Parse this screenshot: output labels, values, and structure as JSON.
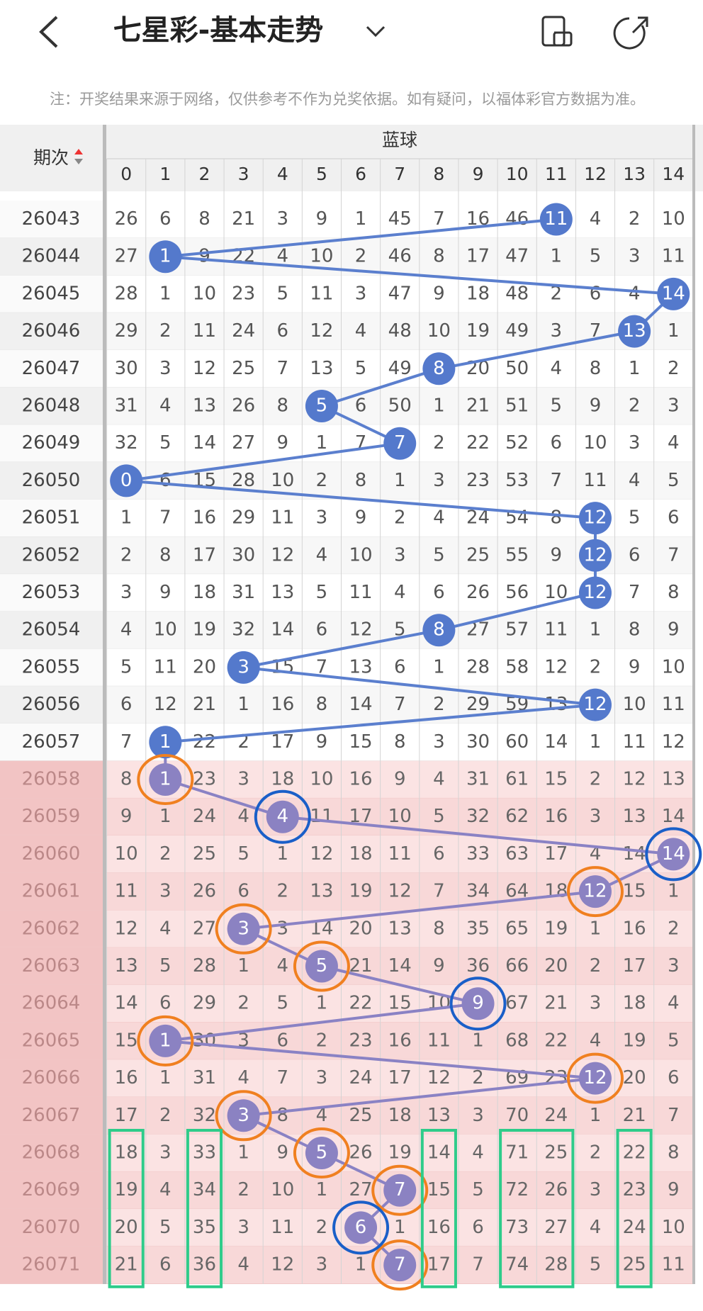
{
  "header": {
    "title": "七星彩-基本走势",
    "note": "注：开奖结果来源于网络，仅供参考不作为兑奖依据。如有疑问，以福体彩官方数据为准。"
  },
  "table": {
    "period_header": "期次",
    "group_header": "蓝球",
    "columns": [
      "0",
      "1",
      "2",
      "3",
      "4",
      "5",
      "6",
      "7",
      "8",
      "9",
      "10",
      "11",
      "12",
      "13",
      "14"
    ],
    "rows": [
      {
        "period": "26043",
        "cells": [
          26,
          6,
          8,
          21,
          3,
          9,
          1,
          45,
          7,
          16,
          46,
          11,
          4,
          2,
          10
        ],
        "hit": 11
      },
      {
        "period": "26044",
        "cells": [
          27,
          1,
          9,
          22,
          4,
          10,
          2,
          46,
          8,
          17,
          47,
          1,
          5,
          3,
          11
        ],
        "hit": 1
      },
      {
        "period": "26045",
        "cells": [
          28,
          1,
          10,
          23,
          5,
          11,
          3,
          47,
          9,
          18,
          48,
          2,
          6,
          4,
          14
        ],
        "hit": 14
      },
      {
        "period": "26046",
        "cells": [
          29,
          2,
          11,
          24,
          6,
          12,
          4,
          48,
          10,
          19,
          49,
          3,
          7,
          13,
          1
        ],
        "hit": 13
      },
      {
        "period": "26047",
        "cells": [
          30,
          3,
          12,
          25,
          7,
          13,
          5,
          49,
          8,
          20,
          50,
          4,
          8,
          1,
          2
        ],
        "hit": 8
      },
      {
        "period": "26048",
        "cells": [
          31,
          4,
          13,
          26,
          8,
          5,
          6,
          50,
          1,
          21,
          51,
          5,
          9,
          2,
          3
        ],
        "hit": 5
      },
      {
        "period": "26049",
        "cells": [
          32,
          5,
          14,
          27,
          9,
          1,
          7,
          7,
          2,
          22,
          52,
          6,
          10,
          3,
          4
        ],
        "hit": 7
      },
      {
        "period": "26050",
        "cells": [
          0,
          6,
          15,
          28,
          10,
          2,
          8,
          1,
          3,
          23,
          53,
          7,
          11,
          4,
          5
        ],
        "hit": 0
      },
      {
        "period": "26051",
        "cells": [
          1,
          7,
          16,
          29,
          11,
          3,
          9,
          2,
          4,
          24,
          54,
          8,
          12,
          5,
          6
        ],
        "hit": 12
      },
      {
        "period": "26052",
        "cells": [
          2,
          8,
          17,
          30,
          12,
          4,
          10,
          3,
          5,
          25,
          55,
          9,
          12,
          6,
          7
        ],
        "hit": 12
      },
      {
        "period": "26053",
        "cells": [
          3,
          9,
          18,
          31,
          13,
          5,
          11,
          4,
          6,
          26,
          56,
          10,
          12,
          7,
          8
        ],
        "hit": 12
      },
      {
        "period": "26054",
        "cells": [
          4,
          10,
          19,
          32,
          14,
          6,
          12,
          5,
          8,
          27,
          57,
          11,
          1,
          8,
          9
        ],
        "hit": 8
      },
      {
        "period": "26055",
        "cells": [
          5,
          11,
          20,
          3,
          15,
          7,
          13,
          6,
          1,
          28,
          58,
          12,
          2,
          9,
          10
        ],
        "hit": 3
      },
      {
        "period": "26056",
        "cells": [
          6,
          12,
          21,
          1,
          16,
          8,
          14,
          7,
          2,
          29,
          59,
          13,
          12,
          10,
          11
        ],
        "hit": 12
      },
      {
        "period": "26057",
        "cells": [
          7,
          1,
          22,
          2,
          17,
          9,
          15,
          8,
          3,
          30,
          60,
          14,
          1,
          11,
          12
        ],
        "hit": 1
      },
      {
        "period": "26058",
        "cells": [
          8,
          1,
          23,
          3,
          18,
          10,
          16,
          9,
          4,
          31,
          61,
          15,
          2,
          12,
          13
        ],
        "hit": 1
      },
      {
        "period": "26059",
        "cells": [
          9,
          1,
          24,
          4,
          4,
          11,
          17,
          10,
          5,
          32,
          62,
          16,
          3,
          13,
          14
        ],
        "hit": 4
      },
      {
        "period": "26060",
        "cells": [
          10,
          2,
          25,
          5,
          1,
          12,
          18,
          11,
          6,
          33,
          63,
          17,
          4,
          14,
          14
        ],
        "hit": 14
      },
      {
        "period": "26061",
        "cells": [
          11,
          3,
          26,
          6,
          2,
          13,
          19,
          12,
          7,
          34,
          64,
          18,
          12,
          15,
          1
        ],
        "hit": 12
      },
      {
        "period": "26062",
        "cells": [
          12,
          4,
          27,
          3,
          3,
          14,
          20,
          13,
          8,
          35,
          65,
          19,
          1,
          16,
          2
        ],
        "hit": 3
      },
      {
        "period": "26063",
        "cells": [
          13,
          5,
          28,
          1,
          4,
          5,
          21,
          14,
          9,
          36,
          66,
          20,
          2,
          17,
          3
        ],
        "hit": 5
      },
      {
        "period": "26064",
        "cells": [
          14,
          6,
          29,
          2,
          5,
          1,
          22,
          15,
          10,
          9,
          67,
          21,
          3,
          18,
          4
        ],
        "hit": 9
      },
      {
        "period": "26065",
        "cells": [
          15,
          1,
          30,
          3,
          6,
          2,
          23,
          16,
          11,
          1,
          68,
          22,
          4,
          19,
          5
        ],
        "hit": 1
      },
      {
        "period": "26066",
        "cells": [
          16,
          1,
          31,
          4,
          7,
          3,
          24,
          17,
          12,
          2,
          69,
          23,
          12,
          20,
          6
        ],
        "hit": 12
      },
      {
        "period": "26067",
        "cells": [
          17,
          2,
          32,
          3,
          8,
          4,
          25,
          18,
          13,
          3,
          70,
          24,
          1,
          21,
          7
        ],
        "hit": 3
      },
      {
        "period": "26068",
        "cells": [
          18,
          3,
          33,
          1,
          9,
          5,
          26,
          19,
          14,
          4,
          71,
          25,
          2,
          22,
          8
        ],
        "hit": 5
      },
      {
        "period": "26069",
        "cells": [
          19,
          4,
          34,
          2,
          10,
          1,
          27,
          7,
          15,
          5,
          72,
          26,
          3,
          23,
          9
        ],
        "hit": 7
      },
      {
        "period": "26070",
        "cells": [
          20,
          5,
          35,
          3,
          11,
          2,
          6,
          1,
          16,
          6,
          73,
          27,
          4,
          24,
          10
        ],
        "hit": 6
      },
      {
        "period": "26071",
        "cells": [
          21,
          6,
          36,
          4,
          12,
          3,
          1,
          7,
          17,
          7,
          74,
          28,
          5,
          25,
          11
        ],
        "hit": 7
      }
    ]
  }
}
